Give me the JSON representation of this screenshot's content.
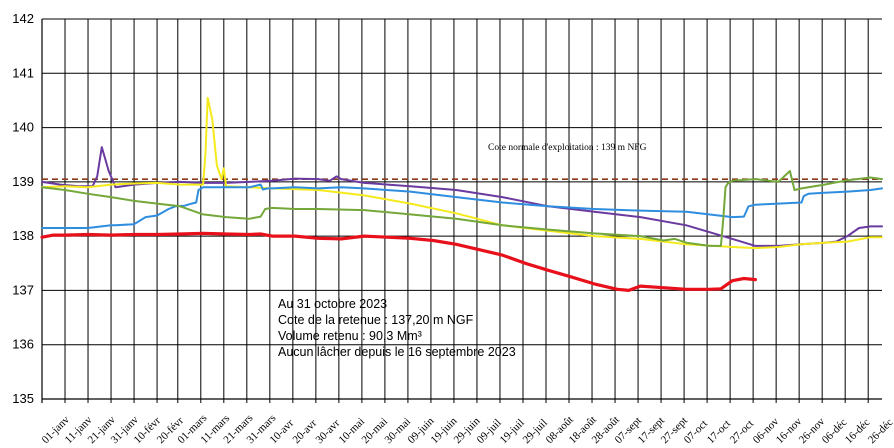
{
  "chart_data": {
    "type": "line",
    "title": "",
    "xlabel": "",
    "ylabel": "",
    "ylim": [
      135,
      142
    ],
    "yticks": [
      135,
      136,
      137,
      138,
      139,
      140,
      141,
      142
    ],
    "xlim": [
      0,
      365
    ],
    "grid": true,
    "legend": "none",
    "x_tick_labels": [
      "01-janv",
      "11-janv",
      "21-janv",
      "31-janv",
      "10-févr",
      "20-févr",
      "01-mars",
      "11-mars",
      "21-mars",
      "31-mars",
      "10-avr",
      "20-avr",
      "30-avr",
      "10-mai",
      "20-mai",
      "30-mai",
      "09-juin",
      "19-juin",
      "29-juin",
      "09-juil",
      "19-juil",
      "29-juil",
      "08-août",
      "18-août",
      "28-août",
      "07-sept",
      "17-sept",
      "27-sept",
      "07-oct",
      "17-oct",
      "27-oct",
      "06-nov",
      "16-nov",
      "26-nov",
      "06-déc",
      "16-déc",
      "26-déc"
    ],
    "x_tick_days": [
      0,
      10,
      20,
      30,
      40,
      50,
      59,
      69,
      79,
      89,
      99,
      109,
      119,
      129,
      139,
      149,
      159,
      169,
      179,
      189,
      199,
      209,
      219,
      229,
      239,
      249,
      259,
      269,
      279,
      289,
      299,
      309,
      319,
      329,
      339,
      349,
      359
    ],
    "reference_line": {
      "y": 139.05,
      "label": "Cote normale d'exploitation : 139 m NFG",
      "color": "#8b3a1a"
    },
    "annotation": [
      "Au 31 octobre 2023",
      "Cote de la retenue : 137,20 m NGF",
      "Volume retenu : 90,3 Mm³",
      "Aucun lâcher depuis le 16 septembre 2023"
    ],
    "series": [
      {
        "color": "#6a3aa0",
        "x": [
          0,
          8,
          16,
          22,
          24,
          26,
          29,
          32,
          40,
          50,
          60,
          70,
          80,
          100,
          110,
          120,
          125,
          128,
          130,
          140,
          160,
          180,
          200,
          220,
          240,
          260,
          280,
          300,
          310,
          320,
          330,
          340,
          345,
          350,
          355,
          360,
          365
        ],
        "y": [
          139.0,
          138.95,
          138.92,
          138.92,
          139.1,
          139.64,
          139.2,
          138.9,
          138.95,
          138.98,
          139.0,
          138.98,
          138.98,
          139.02,
          139.06,
          139.05,
          139.02,
          139.1,
          139.05,
          138.98,
          138.92,
          138.85,
          138.72,
          138.55,
          138.45,
          138.35,
          138.2,
          137.95,
          137.82,
          137.82,
          137.85,
          137.88,
          137.9,
          138.0,
          138.15,
          138.18,
          138.18
        ]
      },
      {
        "color": "#f4ea1c",
        "x": [
          0,
          10,
          20,
          30,
          40,
          50,
          60,
          70,
          71,
          72,
          74,
          76,
          78,
          79,
          80,
          90,
          100,
          120,
          140,
          160,
          180,
          200,
          220,
          240,
          260,
          280,
          300,
          310,
          320,
          330,
          340,
          350,
          360,
          365
        ],
        "y": [
          138.9,
          138.92,
          138.9,
          138.95,
          138.97,
          138.98,
          138.95,
          138.95,
          139.5,
          140.55,
          140.15,
          139.3,
          139.05,
          139.25,
          138.92,
          138.9,
          138.88,
          138.85,
          138.75,
          138.6,
          138.42,
          138.2,
          138.1,
          138.0,
          137.95,
          137.85,
          137.8,
          137.78,
          137.8,
          137.85,
          137.88,
          137.9,
          137.98,
          137.98
        ]
      },
      {
        "color": "#2f8de0",
        "x": [
          0,
          10,
          20,
          30,
          32,
          40,
          45,
          50,
          55,
          58,
          62,
          65,
          67,
          68,
          70,
          75,
          80,
          85,
          90,
          95,
          96,
          98,
          100,
          110,
          120,
          130,
          140,
          160,
          180,
          200,
          220,
          240,
          260,
          280,
          300,
          305,
          307,
          310,
          320,
          330,
          331,
          333,
          340,
          350,
          360,
          365
        ],
        "y": [
          138.15,
          138.15,
          138.15,
          138.2,
          138.2,
          138.22,
          138.35,
          138.38,
          138.5,
          138.55,
          138.56,
          138.6,
          138.62,
          138.85,
          138.9,
          138.9,
          138.9,
          138.9,
          138.9,
          138.95,
          138.86,
          138.88,
          138.88,
          138.9,
          138.88,
          138.9,
          138.88,
          138.82,
          138.72,
          138.62,
          138.55,
          138.5,
          138.47,
          138.45,
          138.35,
          138.36,
          138.55,
          138.58,
          138.6,
          138.62,
          138.74,
          138.78,
          138.8,
          138.82,
          138.85,
          138.88
        ]
      },
      {
        "color": "#74a83b",
        "x": [
          0,
          10,
          20,
          30,
          40,
          50,
          60,
          70,
          80,
          90,
          95,
          97,
          100,
          110,
          120,
          140,
          160,
          180,
          200,
          220,
          240,
          260,
          270,
          275,
          280,
          290,
          295,
          296,
          297,
          298,
          300,
          310,
          320,
          325,
          327,
          330,
          340,
          350,
          360,
          365
        ],
        "y": [
          138.9,
          138.85,
          138.78,
          138.72,
          138.65,
          138.6,
          138.55,
          138.4,
          138.35,
          138.32,
          138.36,
          138.5,
          138.52,
          138.5,
          138.5,
          138.48,
          138.4,
          138.32,
          138.2,
          138.12,
          138.05,
          138.0,
          137.92,
          137.95,
          137.88,
          137.82,
          137.82,
          138.3,
          138.9,
          138.97,
          139.02,
          139.05,
          139.0,
          139.2,
          138.85,
          138.88,
          138.95,
          139.03,
          139.08,
          139.05
        ]
      },
      {
        "color": "#e8101a",
        "x": [
          0,
          5,
          10,
          20,
          30,
          40,
          50,
          60,
          70,
          80,
          90,
          95,
          100,
          110,
          120,
          130,
          140,
          150,
          160,
          170,
          180,
          190,
          200,
          210,
          220,
          230,
          240,
          250,
          255,
          260,
          270,
          280,
          290,
          295,
          300,
          305,
          310
        ],
        "y": [
          137.98,
          138.02,
          138.02,
          138.03,
          138.02,
          138.03,
          138.03,
          138.04,
          138.05,
          138.04,
          138.03,
          138.04,
          138.0,
          138.0,
          137.96,
          137.95,
          138.0,
          137.98,
          137.96,
          137.92,
          137.85,
          137.75,
          137.65,
          137.5,
          137.37,
          137.25,
          137.12,
          137.02,
          137.0,
          137.08,
          137.05,
          137.02,
          137.02,
          137.03,
          137.18,
          137.22,
          137.2
        ]
      }
    ]
  }
}
